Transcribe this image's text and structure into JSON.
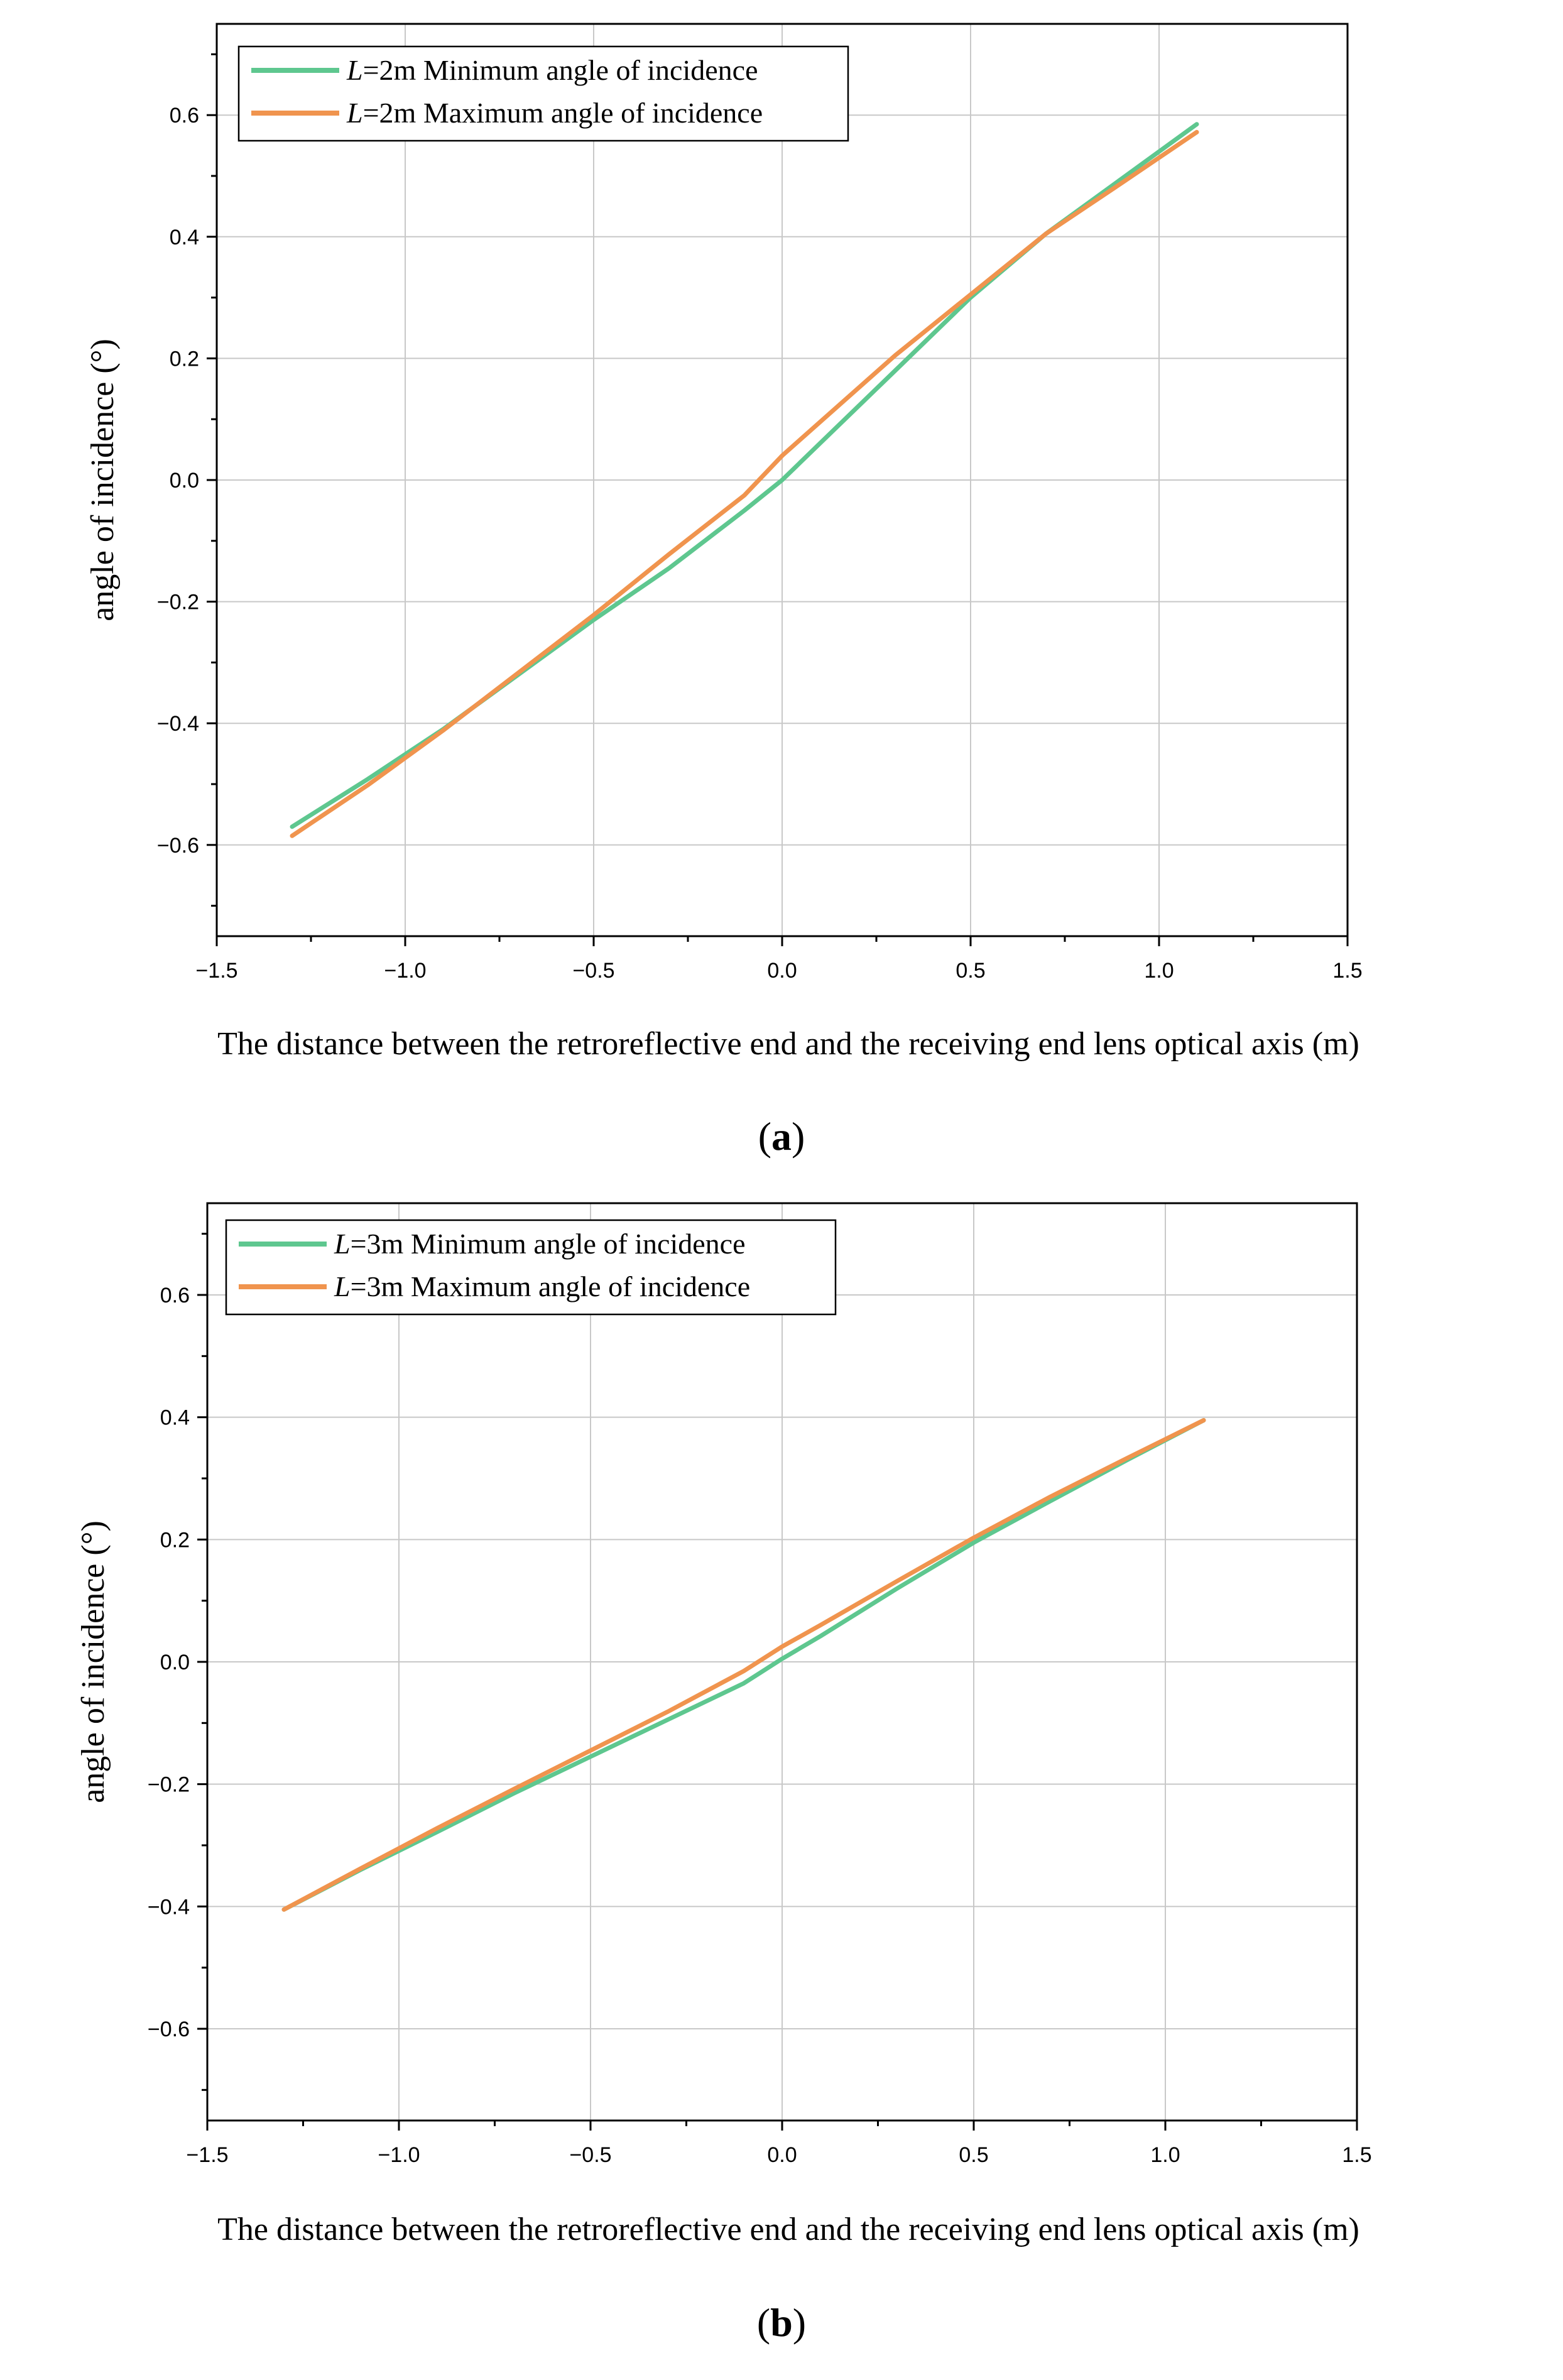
{
  "chart_data": [
    {
      "type": "line",
      "panel_label": "a",
      "xlabel": "The distance between the retroreflective end and the receiving end lens optical axis (m)",
      "ylabel": "angle of incidence (°)",
      "xlim": [
        -1.5,
        1.5
      ],
      "ylim": [
        -0.75,
        0.75
      ],
      "xticks": [
        -1.5,
        -1.0,
        -0.5,
        0.0,
        0.5,
        1.0,
        1.5
      ],
      "xtick_labels": [
        "−1.5",
        "−1.0",
        "−0.5",
        "0.0",
        "0.5",
        "1.0",
        "1.5"
      ],
      "yticks": [
        -0.6,
        -0.4,
        -0.2,
        0.0,
        0.2,
        0.4,
        0.6
      ],
      "ytick_labels": [
        "−0.6",
        "−0.4",
        "−0.2",
        "0.0",
        "0.2",
        "0.4",
        "0.6"
      ],
      "grid": true,
      "legend_position": "top-left",
      "series": [
        {
          "name": "L=2m Minimum angle of incidence",
          "legend_var": "L",
          "legend_rest": "=2m Minimum angle of incidence",
          "color": "#5ec78f",
          "x": [
            -1.3,
            -1.1,
            -0.9,
            -0.7,
            -0.5,
            -0.3,
            -0.1,
            0.0,
            0.1,
            0.3,
            0.5,
            0.7,
            0.9,
            1.1
          ],
          "y": [
            -0.57,
            -0.492,
            -0.41,
            -0.32,
            -0.23,
            -0.145,
            -0.05,
            0.0,
            0.06,
            0.18,
            0.3,
            0.405,
            0.495,
            0.585
          ]
        },
        {
          "name": "L=2m Maximum angle of incidence",
          "legend_var": "L",
          "legend_rest": "=2m Maximum angle of incidence",
          "color": "#f0944e",
          "x": [
            -1.3,
            -1.1,
            -0.9,
            -0.7,
            -0.5,
            -0.3,
            -0.1,
            0.0,
            0.1,
            0.3,
            0.5,
            0.7,
            0.9,
            1.1
          ],
          "y": [
            -0.585,
            -0.502,
            -0.412,
            -0.317,
            -0.222,
            -0.122,
            -0.025,
            0.04,
            0.095,
            0.205,
            0.305,
            0.405,
            0.488,
            0.572
          ]
        }
      ]
    },
    {
      "type": "line",
      "panel_label": "b",
      "xlabel": "The distance between the retroreflective end and the receiving end lens optical axis (m)",
      "ylabel": "angle of incidence (°)",
      "xlim": [
        -1.5,
        1.5
      ],
      "ylim": [
        -0.75,
        0.75
      ],
      "xticks": [
        -1.5,
        -1.0,
        -0.5,
        0.0,
        0.5,
        1.0,
        1.5
      ],
      "xtick_labels": [
        "−1.5",
        "−1.0",
        "−0.5",
        "0.0",
        "0.5",
        "1.0",
        "1.5"
      ],
      "yticks": [
        -0.6,
        -0.4,
        -0.2,
        0.0,
        0.2,
        0.4,
        0.6
      ],
      "ytick_labels": [
        "−0.6",
        "−0.4",
        "−0.2",
        "0.0",
        "0.2",
        "0.4",
        "0.6"
      ],
      "grid": true,
      "legend_position": "top-left",
      "series": [
        {
          "name": "L=3m Minimum angle of incidence",
          "legend_var": "L",
          "legend_rest": "=3m Minimum angle of incidence",
          "color": "#5ec78f",
          "x": [
            -1.3,
            -1.1,
            -0.9,
            -0.7,
            -0.5,
            -0.3,
            -0.1,
            0.0,
            0.1,
            0.3,
            0.5,
            0.7,
            0.9,
            1.1
          ],
          "y": [
            -0.405,
            -0.34,
            -0.278,
            -0.215,
            -0.155,
            -0.095,
            -0.035,
            0.005,
            0.042,
            0.12,
            0.195,
            0.263,
            0.33,
            0.395
          ]
        },
        {
          "name": "L=3m Maximum angle of incidence",
          "legend_var": "L",
          "legend_rest": "=3m Maximum angle of incidence",
          "color": "#f0944e",
          "x": [
            -1.3,
            -1.1,
            -0.9,
            -0.7,
            -0.5,
            -0.3,
            -0.1,
            0.0,
            0.1,
            0.3,
            0.5,
            0.7,
            0.9,
            1.1
          ],
          "y": [
            -0.405,
            -0.338,
            -0.272,
            -0.208,
            -0.145,
            -0.082,
            -0.015,
            0.025,
            0.06,
            0.132,
            0.203,
            0.27,
            0.333,
            0.395
          ]
        }
      ]
    }
  ]
}
